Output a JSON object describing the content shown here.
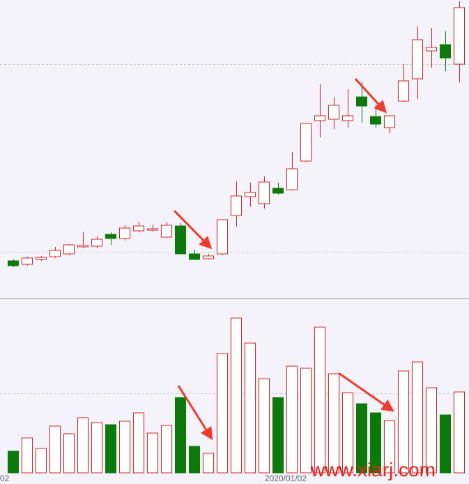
{
  "chart_data": [
    {
      "type": "candlestick",
      "up_color": "#d7262c",
      "down_color": "#0b7a0b",
      "open": [
        56,
        51,
        58,
        62,
        66,
        76,
        77,
        94,
        88,
        99,
        100,
        90,
        106,
        66,
        59,
        66,
        121,
        148,
        138,
        160,
        158,
        199,
        257,
        259,
        257,
        291,
        263,
        247,
        285,
        317,
        357,
        366,
        338
      ],
      "high": [
        58,
        62,
        63,
        76,
        80,
        97,
        91,
        97,
        107,
        112,
        108,
        112,
        110,
        72,
        66,
        115,
        170,
        168,
        177,
        168,
        212,
        253,
        309,
        291,
        302,
        313,
        280,
        264,
        338,
        392,
        390,
        385,
        428
      ],
      "low": [
        47,
        49,
        56,
        60,
        64,
        74,
        74,
        79,
        85,
        97,
        98,
        89,
        66,
        57,
        58,
        64,
        105,
        134,
        131,
        151,
        157,
        198,
        233,
        245,
        247,
        254,
        247,
        239,
        284,
        288,
        333,
        328,
        312
      ],
      "close": [
        49,
        60,
        61,
        71,
        79,
        78,
        87,
        88,
        103,
        106,
        102,
        107,
        66,
        58,
        63,
        115,
        149,
        154,
        169,
        153,
        188,
        253,
        264,
        279,
        264,
        278,
        252,
        264,
        314,
        373,
        362,
        347,
        419
      ],
      "ylim": [
        0,
        430
      ],
      "gridlines": [
        69,
        338
      ]
    },
    {
      "type": "volume",
      "values": [
        31,
        50,
        35,
        67,
        56,
        79,
        72,
        69,
        74,
        86,
        57,
        68,
        108,
        38,
        28,
        171,
        222,
        186,
        135,
        108,
        153,
        150,
        209,
        142,
        115,
        99,
        86,
        75,
        146,
        159,
        122,
        83,
        116
      ],
      "ylim": [
        0,
        250
      ],
      "gridlines": [
        114
      ],
      "x_labels": [
        "02",
        "2020/01/02"
      ],
      "watermark": "www.xiarj.com"
    }
  ]
}
